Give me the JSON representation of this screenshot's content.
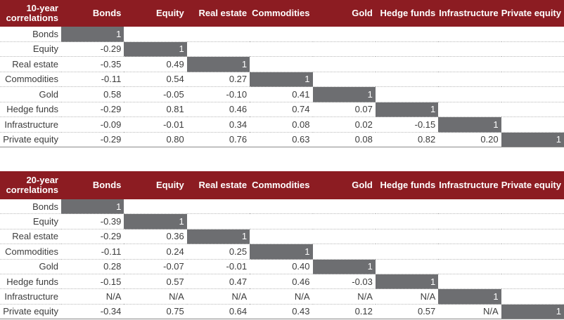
{
  "tables": [
    {
      "title": "10-year correlations",
      "columns": [
        "Bonds",
        "Equity",
        "Real estate",
        "Commodities",
        "Gold",
        "Hedge funds",
        "Infrastructure",
        "Private equity"
      ],
      "rows": [
        {
          "label": "Bonds",
          "values": [
            "1"
          ]
        },
        {
          "label": "Equity",
          "values": [
            "-0.29",
            "1"
          ]
        },
        {
          "label": "Real estate",
          "values": [
            "-0.35",
            "0.49",
            "1"
          ]
        },
        {
          "label": "Commodities",
          "values": [
            "-0.11",
            "0.54",
            "0.27",
            "1"
          ]
        },
        {
          "label": "Gold",
          "values": [
            "0.58",
            "-0.05",
            "-0.10",
            "0.41",
            "1"
          ]
        },
        {
          "label": "Hedge funds",
          "values": [
            "-0.29",
            "0.81",
            "0.46",
            "0.74",
            "0.07",
            "1"
          ]
        },
        {
          "label": "Infrastructure",
          "values": [
            "-0.09",
            "-0.01",
            "0.34",
            "0.08",
            "0.02",
            "-0.15",
            "1"
          ]
        },
        {
          "label": "Private equity",
          "values": [
            "-0.29",
            "0.80",
            "0.76",
            "0.63",
            "0.08",
            "0.82",
            "0.20",
            "1"
          ]
        }
      ]
    },
    {
      "title": "20-year correlations",
      "columns": [
        "Bonds",
        "Equity",
        "Real estate",
        "Commodities",
        "Gold",
        "Hedge funds",
        "Infrastructure",
        "Private equity"
      ],
      "rows": [
        {
          "label": "Bonds",
          "values": [
            "1"
          ]
        },
        {
          "label": "Equity",
          "values": [
            "-0.39",
            "1"
          ]
        },
        {
          "label": "Real estate",
          "values": [
            "-0.29",
            "0.36",
            "1"
          ]
        },
        {
          "label": "Commodities",
          "values": [
            "-0.11",
            "0.24",
            "0.25",
            "1"
          ]
        },
        {
          "label": "Gold",
          "values": [
            "0.28",
            "-0.07",
            "-0.01",
            "0.40",
            "1"
          ]
        },
        {
          "label": "Hedge funds",
          "values": [
            "-0.15",
            "0.57",
            "0.47",
            "0.46",
            "-0.03",
            "1"
          ]
        },
        {
          "label": "Infrastructure",
          "values": [
            "N/A",
            "N/A",
            "N/A",
            "N/A",
            "N/A",
            "N/A",
            "1"
          ]
        },
        {
          "label": "Private equity",
          "values": [
            "-0.34",
            "0.75",
            "0.64",
            "0.43",
            "0.12",
            "0.57",
            "N/A",
            "1"
          ]
        }
      ]
    }
  ]
}
